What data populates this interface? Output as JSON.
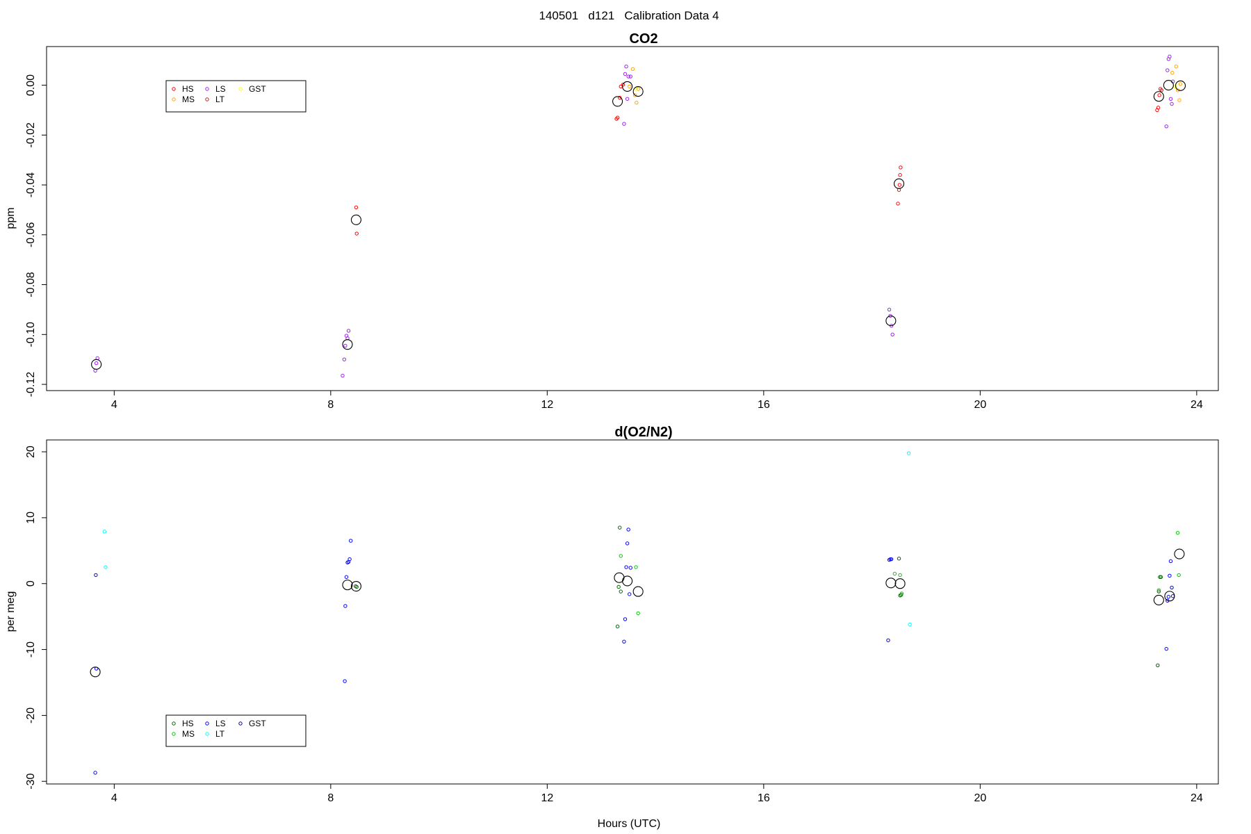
{
  "page_title": "140501   d121   Calibration Data 4",
  "chart_data": [
    {
      "type": "scatter",
      "title": "CO2",
      "xlabel": "",
      "ylabel": "ppm",
      "xlim": [
        2.75,
        24.4
      ],
      "ylim": [
        -0.1225,
        0.0155
      ],
      "xticks": [
        4,
        8,
        12,
        16,
        20,
        24
      ],
      "yticks": [
        -0.12,
        -0.1,
        -0.08,
        -0.06,
        -0.04,
        -0.02,
        0.0
      ],
      "ytick_labels": [
        "-0.12",
        "-0.10",
        "-0.08",
        "-0.06",
        "-0.04",
        "-0.02",
        "0.00"
      ],
      "grid": false,
      "legend": {
        "placement": "top-left",
        "entries": [
          {
            "label": "HS",
            "color": "#ff0000"
          },
          {
            "label": "MS",
            "color": "#ffa500"
          },
          {
            "label": "LS",
            "color": "#a020f0"
          },
          {
            "label": "LT",
            "color": "#b22222"
          },
          {
            "label": "GST",
            "color": "#ffff00"
          }
        ]
      },
      "series": [
        {
          "name": "HS",
          "color": "#ff0000",
          "points": [
            [
              8.47,
              -0.049
            ],
            [
              8.48,
              -0.0595
            ],
            [
              13.28,
              -0.0135
            ],
            [
              13.3,
              -0.013
            ],
            [
              13.34,
              -0.005
            ],
            [
              13.36,
              -0.0005
            ],
            [
              13.4,
              0.0002
            ],
            [
              18.48,
              -0.0475
            ],
            [
              18.5,
              -0.042
            ],
            [
              18.51,
              -0.04
            ],
            [
              18.52,
              -0.036
            ],
            [
              18.53,
              -0.033
            ],
            [
              23.27,
              -0.01
            ],
            [
              23.29,
              -0.009
            ],
            [
              23.31,
              -0.004
            ],
            [
              23.33,
              -0.0015
            ],
            [
              23.35,
              -0.002
            ]
          ]
        },
        {
          "name": "MS",
          "color": "#ffa500",
          "points": [
            [
              13.52,
              -0.0005
            ],
            [
              13.58,
              0.0065
            ],
            [
              13.62,
              -0.004
            ],
            [
              13.65,
              -0.007
            ],
            [
              13.68,
              -0.0015
            ],
            [
              23.55,
              0.005
            ],
            [
              23.62,
              0.0075
            ],
            [
              23.65,
              -0.002
            ],
            [
              23.68,
              -0.006
            ],
            [
              23.7,
              0.0005
            ]
          ]
        },
        {
          "name": "LS",
          "color": "#a020f0",
          "points": [
            [
              3.65,
              -0.1145
            ],
            [
              3.67,
              -0.1115
            ],
            [
              3.69,
              -0.1095
            ],
            [
              8.22,
              -0.1165
            ],
            [
              8.25,
              -0.11
            ],
            [
              8.27,
              -0.1045
            ],
            [
              8.29,
              -0.1005
            ],
            [
              8.31,
              -0.1015
            ],
            [
              8.33,
              -0.0985
            ],
            [
              13.42,
              -0.0155
            ],
            [
              13.44,
              0.0045
            ],
            [
              13.46,
              0.0075
            ],
            [
              13.48,
              -0.0055
            ],
            [
              13.5,
              0.0035
            ],
            [
              13.54,
              0.0035
            ],
            [
              18.32,
              -0.09
            ],
            [
              18.34,
              -0.0925
            ],
            [
              18.36,
              -0.0965
            ],
            [
              18.38,
              -0.1
            ],
            [
              23.44,
              -0.0165
            ],
            [
              23.46,
              0.006
            ],
            [
              23.48,
              0.0105
            ],
            [
              23.5,
              0.0115
            ],
            [
              23.52,
              -0.0055
            ],
            [
              23.54,
              -0.0075
            ],
            [
              23.56,
              0.0015
            ]
          ]
        },
        {
          "name": "LT",
          "color": "#b22222",
          "points": []
        },
        {
          "name": "GST",
          "color": "#ffff00",
          "points": [
            [
              13.64,
              -0.0015
            ],
            [
              23.6,
              -0.0005
            ]
          ]
        },
        {
          "name": "mean",
          "color": "#000000",
          "large": true,
          "points": [
            [
              3.67,
              -0.112
            ],
            [
              8.31,
              -0.104
            ],
            [
              8.47,
              -0.054
            ],
            [
              13.3,
              -0.0065
            ],
            [
              13.48,
              -0.0005
            ],
            [
              13.68,
              -0.0025
            ],
            [
              18.35,
              -0.0945
            ],
            [
              18.5,
              -0.0395
            ],
            [
              23.3,
              -0.0045
            ],
            [
              23.48,
              0.0
            ],
            [
              23.7,
              -0.0002
            ]
          ]
        }
      ]
    },
    {
      "type": "scatter",
      "title": "d(O2/N2)",
      "xlabel": "Hours (UTC)",
      "ylabel": "per meg",
      "xlim": [
        2.75,
        24.4
      ],
      "ylim": [
        -30.4,
        21.8
      ],
      "xticks": [
        4,
        8,
        12,
        16,
        20,
        24
      ],
      "yticks": [
        -30,
        -20,
        -10,
        0,
        10,
        20
      ],
      "ytick_labels": [
        "-30",
        "-20",
        "-10",
        "0",
        "10",
        "20"
      ],
      "grid": false,
      "legend": {
        "placement": "bottom-left",
        "entries": [
          {
            "label": "HS",
            "color": "#006400"
          },
          {
            "label": "MS",
            "color": "#00cc00"
          },
          {
            "label": "LS",
            "color": "#0000ff"
          },
          {
            "label": "LT",
            "color": "#00ffff"
          },
          {
            "label": "GST",
            "color": "#00008b"
          }
        ]
      },
      "series": [
        {
          "name": "HS",
          "color": "#006400",
          "points": [
            [
              8.46,
              -0.4
            ],
            [
              8.48,
              -0.5
            ],
            [
              13.3,
              -6.5
            ],
            [
              13.32,
              -0.5
            ],
            [
              13.34,
              8.5
            ],
            [
              13.36,
              -1.2
            ],
            [
              18.5,
              3.8
            ],
            [
              18.52,
              -1.8
            ],
            [
              18.54,
              -1.7
            ],
            [
              23.28,
              -12.4
            ],
            [
              23.3,
              -1.2
            ],
            [
              23.32,
              1.0
            ],
            [
              23.34,
              1.0
            ]
          ]
        },
        {
          "name": "MS",
          "color": "#00cc00",
          "points": [
            [
              13.36,
              4.2
            ],
            [
              13.64,
              2.5
            ],
            [
              13.68,
              -4.5
            ],
            [
              18.42,
              1.5
            ],
            [
              18.52,
              1.3
            ],
            [
              18.55,
              -1.5
            ],
            [
              23.3,
              -1.0
            ],
            [
              23.65,
              7.7
            ],
            [
              23.67,
              1.3
            ]
          ]
        },
        {
          "name": "LS",
          "color": "#0000ff",
          "points": [
            [
              3.65,
              -28.7
            ],
            [
              3.66,
              1.3
            ],
            [
              3.67,
              -12.9
            ],
            [
              8.26,
              -14.8
            ],
            [
              8.27,
              -3.4
            ],
            [
              8.29,
              1.0
            ],
            [
              8.31,
              3.2
            ],
            [
              8.33,
              3.3
            ],
            [
              8.35,
              3.7
            ],
            [
              8.37,
              6.5
            ],
            [
              13.42,
              -8.8
            ],
            [
              13.44,
              -5.4
            ],
            [
              13.46,
              2.5
            ],
            [
              13.48,
              6.1
            ],
            [
              13.5,
              8.2
            ],
            [
              13.52,
              -1.6
            ],
            [
              13.54,
              2.4
            ],
            [
              18.3,
              -8.6
            ],
            [
              18.32,
              3.6
            ],
            [
              18.34,
              3.7
            ],
            [
              18.36,
              3.7
            ],
            [
              23.44,
              -9.9
            ],
            [
              23.46,
              -2.6
            ],
            [
              23.48,
              -2.0
            ],
            [
              23.5,
              1.2
            ],
            [
              23.52,
              3.4
            ],
            [
              23.54,
              -0.6
            ],
            [
              23.56,
              -1.9
            ]
          ]
        },
        {
          "name": "LT",
          "color": "#00ffff",
          "points": [
            [
              3.82,
              7.9
            ],
            [
              3.84,
              2.5
            ],
            [
              18.68,
              19.8
            ],
            [
              18.7,
              -6.2
            ]
          ]
        },
        {
          "name": "GST",
          "color": "#00008b",
          "points": []
        },
        {
          "name": "mean",
          "color": "#000000",
          "large": true,
          "points": [
            [
              3.65,
              -13.4
            ],
            [
              8.31,
              -0.2
            ],
            [
              8.47,
              -0.4
            ],
            [
              13.33,
              0.9
            ],
            [
              13.48,
              0.4
            ],
            [
              13.68,
              -1.2
            ],
            [
              18.35,
              0.1
            ],
            [
              18.52,
              0.0
            ],
            [
              23.3,
              -2.5
            ],
            [
              23.5,
              -1.9
            ],
            [
              23.68,
              4.5
            ]
          ]
        }
      ]
    }
  ]
}
